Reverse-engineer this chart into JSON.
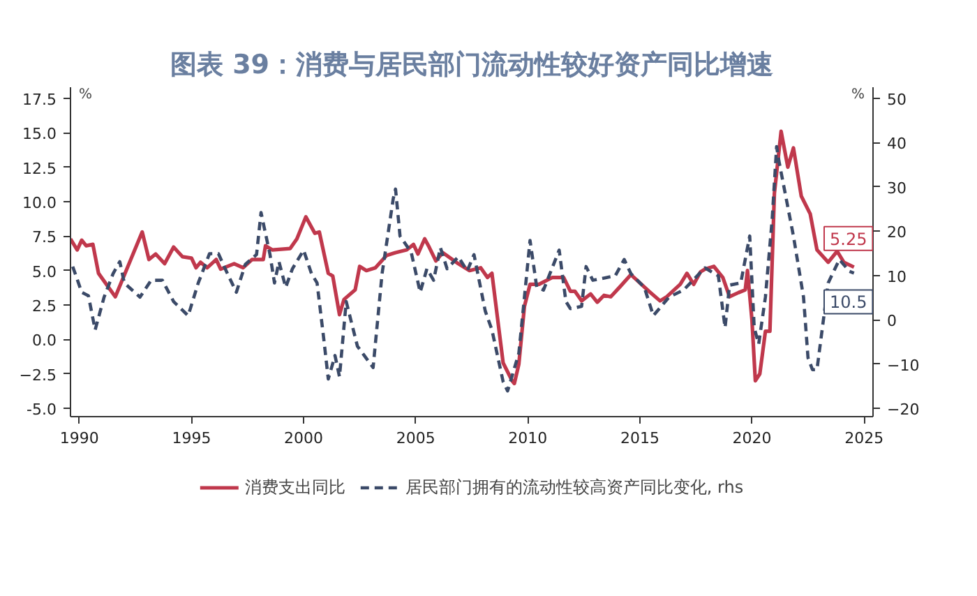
{
  "chart_data": {
    "type": "line",
    "title": "图表 39：消费与居民部门流动性较好资产同比增速",
    "ylabel": "%",
    "y2label": "%",
    "xlim": [
      1989.6,
      2025.4
    ],
    "xticks": [
      1990,
      1995,
      2000,
      2005,
      2010,
      2015,
      2020,
      2025
    ],
    "ylim": [
      -5.6,
      18.3
    ],
    "yticks": [
      {
        "value": -5,
        "label": "-5.0"
      },
      -2.5,
      {
        "value": 0,
        "label": "0.0"
      },
      2.5,
      {
        "value": 5,
        "label": "5.0"
      },
      7.5,
      {
        "value": 10,
        "label": "10.0"
      },
      12.5,
      {
        "value": 15,
        "label": "15.0"
      },
      17.5
    ],
    "y2lim": [
      -21.9,
      52.5
    ],
    "y2ticks": [
      -20,
      -10,
      0,
      10,
      20,
      30,
      40,
      50
    ],
    "grid": false,
    "legend": "bottom",
    "series": [
      {
        "name": "消费支出同比",
        "color": "#c0384c",
        "line_style": "solid",
        "axis": "y",
        "x": [
          1989.6,
          1989.9,
          1990.1,
          1990.3,
          1990.6,
          1990.85,
          1991.6,
          1992.8,
          1993.1,
          1993.4,
          1993.8,
          1994.2,
          1994.6,
          1995.0,
          1995.2,
          1995.4,
          1995.7,
          1996.1,
          1996.3,
          1996.9,
          1997.3,
          1997.7,
          1998.2,
          1998.3,
          1998.6,
          1999.4,
          1999.7,
          2000.1,
          2000.5,
          2000.7,
          2001.1,
          2001.3,
          2001.6,
          2001.8,
          2002.3,
          2002.5,
          2002.8,
          2003.2,
          2003.7,
          2004.1,
          2004.6,
          2004.9,
          2005.1,
          2005.4,
          2005.6,
          2005.9,
          2006.2,
          2006.9,
          2007.4,
          2007.9,
          2008.2,
          2008.4,
          2008.9,
          2009.3,
          2009.4,
          2009.6,
          2009.85,
          2010.1,
          2010.5,
          2011.1,
          2011.6,
          2011.9,
          2012.1,
          2012.4,
          2012.8,
          2013.1,
          2013.4,
          2013.7,
          2014.1,
          2014.6,
          2015.0,
          2015.4,
          2015.9,
          2016.2,
          2016.8,
          2017.1,
          2017.4,
          2017.7,
          2017.9,
          2018.3,
          2018.7,
          2019.0,
          2019.4,
          2019.7,
          2019.8,
          2020.0,
          2020.15,
          2020.35,
          2020.6,
          2020.8,
          2021.0,
          2021.3,
          2021.6,
          2021.85,
          2022.2,
          2022.6,
          2022.9,
          2023.4,
          2023.8,
          2024.1,
          2024.55
        ],
        "values": [
          7.3,
          6.5,
          7.2,
          6.8,
          6.9,
          4.8,
          3.1,
          7.8,
          5.8,
          6.2,
          5.5,
          6.7,
          6.0,
          5.9,
          5.2,
          5.6,
          5.2,
          5.8,
          5.1,
          5.5,
          5.2,
          5.8,
          5.8,
          6.8,
          6.5,
          6.6,
          7.3,
          8.9,
          7.7,
          7.8,
          4.8,
          4.6,
          1.8,
          2.9,
          3.6,
          5.3,
          5.0,
          5.2,
          6.1,
          6.3,
          6.5,
          6.9,
          6.2,
          7.3,
          6.7,
          5.7,
          6.3,
          5.5,
          5.0,
          5.2,
          4.5,
          4.8,
          -1.7,
          -3.0,
          -3.2,
          -1.8,
          2.4,
          4.0,
          4.0,
          4.5,
          4.5,
          3.5,
          3.5,
          2.8,
          3.3,
          2.7,
          3.2,
          3.1,
          3.8,
          4.7,
          4.1,
          3.5,
          2.8,
          3.1,
          4.0,
          4.8,
          4.0,
          4.9,
          5.1,
          5.3,
          4.5,
          3.1,
          3.4,
          3.6,
          5.0,
          1.4,
          -3.0,
          -2.5,
          0.6,
          0.6,
          10.6,
          15.1,
          12.5,
          13.9,
          10.4,
          9.1,
          6.5,
          5.6,
          6.4,
          5.6,
          5.25
        ],
        "value_labels": [
          null,
          null,
          null,
          null,
          null,
          null,
          null,
          null,
          null,
          null,
          null,
          null,
          null,
          null,
          null,
          null,
          null,
          null,
          null,
          null,
          null,
          null,
          null,
          null,
          null,
          null,
          null,
          null,
          null,
          null,
          null,
          null,
          null,
          null,
          null,
          null,
          null,
          null,
          null,
          null,
          null,
          null,
          null,
          null,
          null,
          null,
          null,
          null,
          null,
          null,
          null,
          null,
          null,
          null,
          null,
          null,
          null,
          null,
          null,
          null,
          null,
          null,
          null,
          null,
          null,
          null,
          null,
          null,
          null,
          null,
          null,
          null,
          null,
          null,
          null,
          null,
          null,
          null,
          null,
          null,
          null,
          null,
          null,
          null,
          null,
          null,
          null,
          null,
          null,
          null,
          null,
          null,
          null,
          null,
          null,
          null,
          null,
          null,
          null,
          null,
          "5.25"
        ]
      },
      {
        "name": "居民部门拥有的流动性较高资产同比变化, rhs",
        "color": "#3b4a68",
        "line_style": "dashed",
        "axis": "y2",
        "x": [
          1989.7,
          1990.1,
          1990.4,
          1990.7,
          1991.1,
          1991.5,
          1991.8,
          1992.0,
          1992.7,
          1993.2,
          1993.7,
          1994.2,
          1994.85,
          1995.3,
          1995.8,
          1996.2,
          1996.5,
          1997.0,
          1997.4,
          1997.9,
          1998.1,
          1998.5,
          1998.7,
          1998.9,
          1999.2,
          1999.5,
          2000.0,
          2000.35,
          2000.6,
          2000.9,
          2001.1,
          2001.4,
          2001.6,
          2001.9,
          2002.4,
          2003.1,
          2003.5,
          2004.0,
          2004.1,
          2004.3,
          2004.8,
          2005.2,
          2005.5,
          2005.8,
          2006.1,
          2006.4,
          2006.9,
          2007.3,
          2007.6,
          2008.1,
          2008.4,
          2008.9,
          2009.1,
          2009.6,
          2009.8,
          2010.1,
          2010.4,
          2010.7,
          2011.4,
          2011.7,
          2011.9,
          2012.4,
          2012.6,
          2012.9,
          2013.4,
          2013.9,
          2014.3,
          2014.6,
          2015.2,
          2015.6,
          2016.3,
          2016.95,
          2017.9,
          2018.5,
          2018.8,
          2019.0,
          2019.5,
          2019.9,
          2020.1,
          2020.3,
          2020.6,
          2020.9,
          2021.1,
          2021.2,
          2021.85,
          2022.3,
          2022.5,
          2022.7,
          2022.9,
          2023.4,
          2023.9,
          2024.35,
          2024.55
        ],
        "values": [
          12.0,
          6.2,
          5.4,
          -2.3,
          5.1,
          10.4,
          13.1,
          8.3,
          5.1,
          8.9,
          8.9,
          4.1,
          0.9,
          8.3,
          14.9,
          14.9,
          11.5,
          6.2,
          12.5,
          14.7,
          24.2,
          14.7,
          8.3,
          13.1,
          7.3,
          11.5,
          15.7,
          10.4,
          8.3,
          -4.4,
          -13.4,
          -8.1,
          -12.9,
          4.1,
          -6.0,
          -10.8,
          10.4,
          27.4,
          29.5,
          18.9,
          15.2,
          6.2,
          11.5,
          8.9,
          16.3,
          11.5,
          14.2,
          11.0,
          14.7,
          2.0,
          -2.3,
          -14.0,
          -16.1,
          -7.6,
          2.5,
          17.9,
          7.3,
          6.7,
          15.7,
          4.1,
          2.5,
          3.0,
          12.0,
          8.9,
          9.4,
          9.9,
          13.6,
          10.4,
          7.3,
          0.9,
          5.1,
          6.7,
          11.7,
          9.9,
          -1.8,
          7.8,
          8.3,
          18.9,
          -1.8,
          -5.5,
          5.1,
          22.6,
          39.1,
          35.9,
          18.9,
          5.1,
          -8.6,
          -11.3,
          -11.3,
          8.3,
          13.6,
          10.9,
          10.5
        ],
        "value_labels": [
          null,
          null,
          null,
          null,
          null,
          null,
          null,
          null,
          null,
          null,
          null,
          null,
          null,
          null,
          null,
          null,
          null,
          null,
          null,
          null,
          null,
          null,
          null,
          null,
          null,
          null,
          null,
          null,
          null,
          null,
          null,
          null,
          null,
          null,
          null,
          null,
          null,
          null,
          null,
          null,
          null,
          null,
          null,
          null,
          null,
          null,
          null,
          null,
          null,
          null,
          null,
          null,
          null,
          null,
          null,
          null,
          null,
          null,
          null,
          null,
          null,
          null,
          null,
          null,
          null,
          null,
          null,
          null,
          null,
          null,
          null,
          null,
          null,
          null,
          null,
          null,
          null,
          null,
          null,
          null,
          null,
          null,
          null,
          null,
          null,
          null,
          null,
          null,
          null,
          null,
          null,
          null,
          "10.5"
        ]
      }
    ]
  }
}
